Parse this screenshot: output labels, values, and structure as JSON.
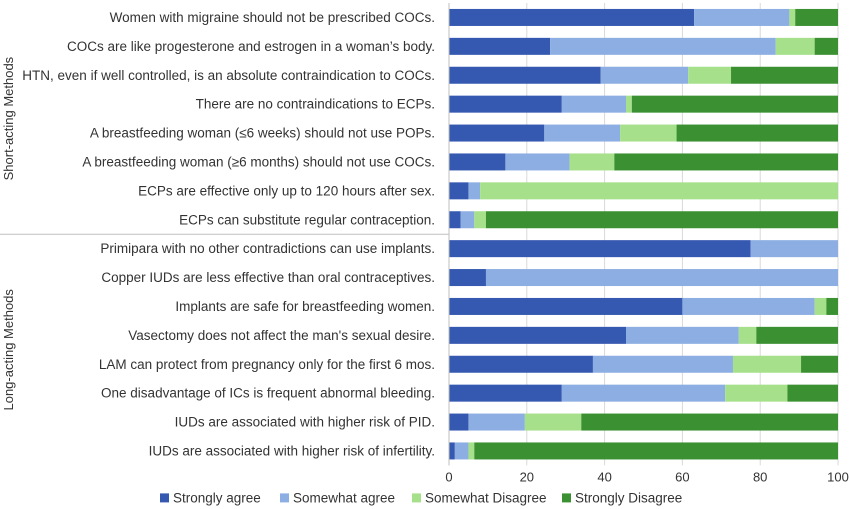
{
  "chart_data": {
    "type": "bar",
    "orientation": "horizontal",
    "stacked": true,
    "xlim": [
      0,
      100
    ],
    "xticks": [
      "0",
      "20",
      "40",
      "60",
      "80",
      "100"
    ],
    "grid": true,
    "legend_position": "bottom-left",
    "groups": [
      {
        "label": "Short-acting Methods",
        "start": 0,
        "count": 8
      },
      {
        "label": "Long-acting Methods",
        "start": 8,
        "count": 8
      }
    ],
    "categories": [
      "Women with migraine should not be prescribed COCs.",
      "COCs are like progesterone and estrogen in a woman’s body.",
      "HTN, even if well controlled, is an absolute contraindication to COCs.",
      "There are no contraindications to ECPs.",
      "A breastfeeding woman (≤6 weeks) should not use POPs.",
      "A breastfeeding woman (≥6 months) should not use COCs.",
      "ECPs are effective only up to 120 hours after sex.",
      "ECPs can substitute regular contraception.",
      "Primipara with no other contradictions can use implants.",
      "Copper IUDs are less effective than oral contraceptives.",
      "Implants are safe for breastfeeding women.",
      "Vasectomy does not affect the man's sexual desire.",
      "LAM can protect from pregnancy only for the first 6 mos.",
      "One disadvantage of ICs is frequent abnormal bleeding.",
      "IUDs are associated with higher risk of PID.",
      "IUDs are associated with higher risk of infertility."
    ],
    "series": [
      {
        "name": "Strongly agree",
        "color": "#3558b0",
        "values": [
          63,
          26,
          39,
          29,
          24.5,
          14.5,
          5,
          3,
          77.5,
          9.5,
          60,
          45.5,
          37,
          29,
          5,
          1.5
        ]
      },
      {
        "name": "Somewhat agree",
        "color": "#8daee2",
        "values": [
          24.5,
          58,
          22.5,
          16.5,
          19.5,
          16.5,
          3,
          3.5,
          22.5,
          90.5,
          34,
          29,
          36,
          42,
          14.5,
          3.5
        ]
      },
      {
        "name": "Somewhat Disagree",
        "color": "#a6e08a",
        "values": [
          1.5,
          10,
          11,
          1.5,
          14.5,
          11.5,
          92,
          3,
          0,
          0,
          3,
          4.5,
          17.5,
          16,
          14.5,
          1.5
        ]
      },
      {
        "name": "Strongly Disagree",
        "color": "#3b9132",
        "values": [
          11,
          6,
          27.5,
          53,
          41.5,
          57.5,
          0,
          90.5,
          0,
          0,
          3,
          21,
          9.5,
          13,
          66,
          93.5
        ]
      }
    ]
  }
}
